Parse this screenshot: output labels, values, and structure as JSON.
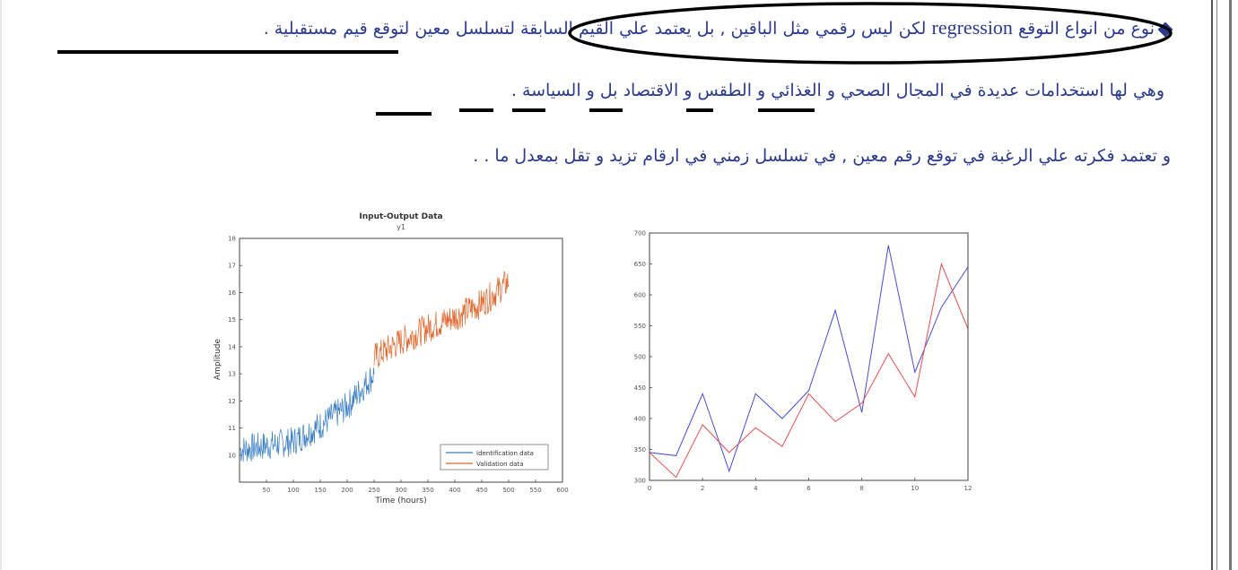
{
  "paragraphs": {
    "p1_before": "نوع من انواع التوقع",
    "p1_latin": "regression",
    "p1_after": "لكن ليس رقمي مثل الباقين , بل يعتمد علي القيم السابقة لتسلسل معين لتوقع قيم مستقبلية .",
    "p2": "وهي لها استخدامات عديدة في المجال الصحي و الغذائي و الطقس و الاقتصاد بل و السياسة .",
    "p3": "و تعتمد فكرته علي الرغبة في توقع رقم معين , في تسلسل زمني في ارقام تزيد و تقل بمعدل ما . ."
  },
  "colors": {
    "text": "#2b3a8f",
    "identification": "#3b7fc4",
    "validation": "#e0642b",
    "series_blue": "#4a4ad8",
    "series_red": "#e45050"
  },
  "chart_data": [
    {
      "type": "line",
      "title": "Input-Output Data",
      "subtitle": "y1",
      "xlabel": "Time (hours)",
      "ylabel": "Amplitude",
      "xlim": [
        0,
        600
      ],
      "ylim": [
        9,
        18
      ],
      "xticks": [
        50,
        100,
        150,
        200,
        250,
        300,
        350,
        400,
        450,
        500,
        550,
        600
      ],
      "yticks": [
        10,
        11,
        12,
        13,
        14,
        15,
        16,
        17,
        18
      ],
      "grid": false,
      "legend_position": "bottom-right",
      "series": [
        {
          "name": "Identification data",
          "x_range": [
            1,
            250
          ],
          "trend": [
            [
              1,
              10.2
            ],
            [
              100,
              10.5
            ],
            [
              150,
              11.1
            ],
            [
              200,
              11.8
            ],
            [
              250,
              13.0
            ]
          ]
        },
        {
          "name": "Validation data",
          "x_range": [
            250,
            500
          ],
          "trend": [
            [
              250,
              13.6
            ],
            [
              300,
              14.2
            ],
            [
              350,
              14.7
            ],
            [
              400,
              15.1
            ],
            [
              450,
              15.6
            ],
            [
              500,
              16.4
            ]
          ]
        }
      ]
    },
    {
      "type": "line",
      "xlim": [
        0,
        12
      ],
      "ylim": [
        300,
        700
      ],
      "xticks": [
        0,
        2,
        4,
        6,
        8,
        10,
        12
      ],
      "yticks": [
        300,
        350,
        400,
        450,
        500,
        550,
        600,
        650,
        700
      ],
      "grid": false,
      "x": [
        0,
        1,
        2,
        3,
        4,
        5,
        6,
        7,
        8,
        9,
        10,
        11,
        12
      ],
      "series": [
        {
          "values": [
            345,
            340,
            440,
            315,
            440,
            400,
            445,
            575,
            410,
            680,
            475,
            580,
            645
          ]
        },
        {
          "values": [
            345,
            305,
            390,
            345,
            385,
            355,
            440,
            395,
            425,
            505,
            435,
            650,
            545
          ]
        }
      ]
    }
  ]
}
